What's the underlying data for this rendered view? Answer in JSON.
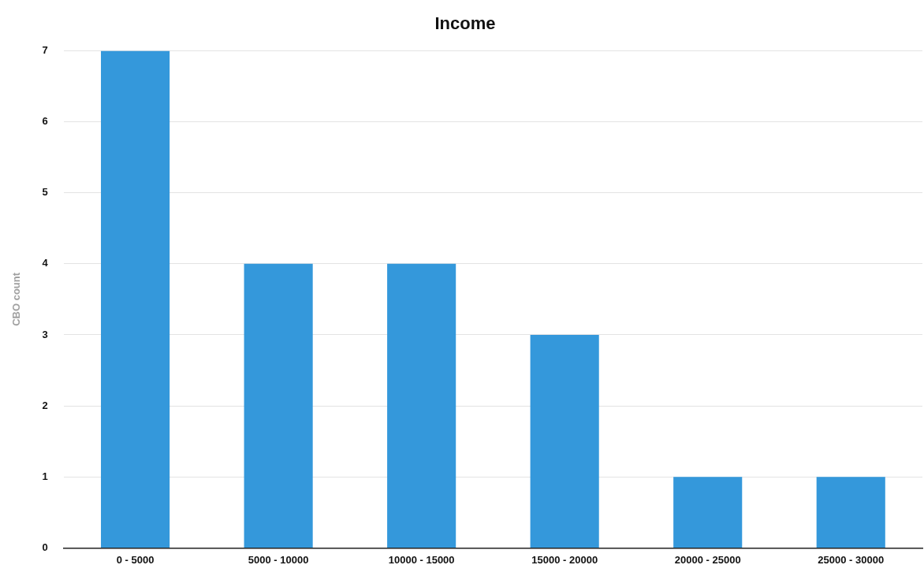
{
  "chart_data": {
    "type": "bar",
    "title": "Income",
    "ylabel": "CBO count",
    "categories": [
      "0 - 5000",
      "5000 - 10000",
      "10000 - 15000",
      "15000 - 20000",
      "20000 - 25000",
      "25000 - 30000"
    ],
    "values": [
      7,
      4,
      4,
      3,
      1,
      1
    ],
    "color": "#3498db",
    "ylim": [
      0,
      7
    ],
    "yticks": [
      0,
      1,
      2,
      3,
      4,
      5,
      6,
      7
    ],
    "grid": "y",
    "legend": false
  }
}
